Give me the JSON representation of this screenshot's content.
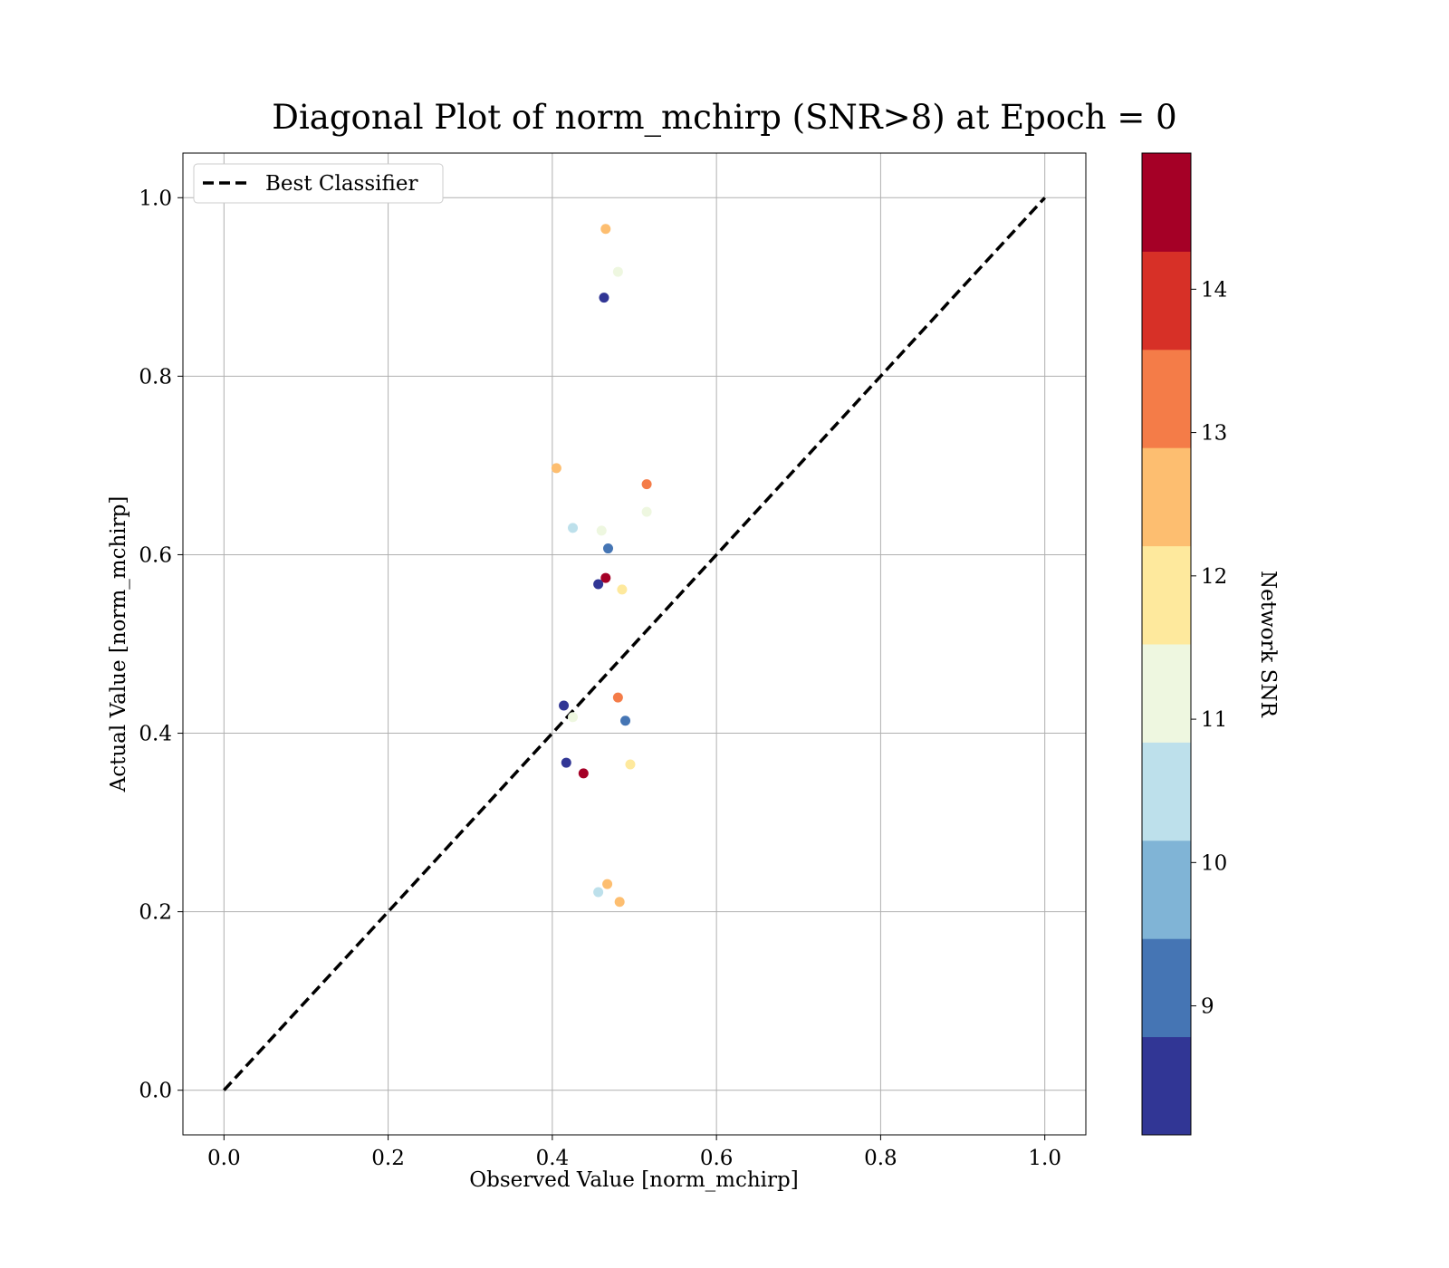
{
  "chart_data": {
    "type": "scatter",
    "title": "Diagonal Plot of norm_mchirp (SNR>8) at Epoch = 0",
    "xlabel": "Observed Value [norm_mchirp]",
    "ylabel": "Actual Value [norm_mchirp]",
    "xlim": [
      -0.05,
      1.05
    ],
    "ylim": [
      -0.05,
      1.05
    ],
    "xticks": [
      "0.0",
      "0.2",
      "0.4",
      "0.6",
      "0.8",
      "1.0"
    ],
    "yticks": [
      "0.0",
      "0.2",
      "0.4",
      "0.6",
      "0.8",
      "1.0"
    ],
    "grid": true,
    "legend": {
      "placement": "top-left",
      "entries": [
        "Best Classifier"
      ]
    },
    "reference_line": {
      "name": "Best Classifier",
      "style": "dashed",
      "color": "#000000",
      "x": [
        0,
        1
      ],
      "y": [
        0,
        1
      ]
    },
    "colorbar": {
      "label": "Network SNR",
      "range": [
        8.1,
        14.95
      ],
      "ticks": [
        "9",
        "10",
        "11",
        "12",
        "13",
        "14"
      ],
      "colors": [
        "#313695",
        "#4575b4",
        "#80b4d6",
        "#bde0eb",
        "#eef7e0",
        "#fee99d",
        "#fdbe70",
        "#f47c48",
        "#d73027",
        "#a50026"
      ]
    },
    "points": [
      {
        "x": 0.465,
        "y": 0.965,
        "snr": 12.5
      },
      {
        "x": 0.48,
        "y": 0.917,
        "snr": 11.3
      },
      {
        "x": 0.463,
        "y": 0.888,
        "snr": 8.3
      },
      {
        "x": 0.405,
        "y": 0.697,
        "snr": 12.5
      },
      {
        "x": 0.515,
        "y": 0.679,
        "snr": 13.2
      },
      {
        "x": 0.515,
        "y": 0.648,
        "snr": 11.3
      },
      {
        "x": 0.425,
        "y": 0.63,
        "snr": 10.7
      },
      {
        "x": 0.46,
        "y": 0.627,
        "snr": 11.3
      },
      {
        "x": 0.468,
        "y": 0.607,
        "snr": 9.2
      },
      {
        "x": 0.465,
        "y": 0.574,
        "snr": 14.7
      },
      {
        "x": 0.456,
        "y": 0.567,
        "snr": 8.3
      },
      {
        "x": 0.485,
        "y": 0.561,
        "snr": 11.8
      },
      {
        "x": 0.48,
        "y": 0.44,
        "snr": 13.2
      },
      {
        "x": 0.414,
        "y": 0.431,
        "snr": 8.3
      },
      {
        "x": 0.425,
        "y": 0.418,
        "snr": 11.3
      },
      {
        "x": 0.489,
        "y": 0.414,
        "snr": 9.2
      },
      {
        "x": 0.417,
        "y": 0.367,
        "snr": 8.3
      },
      {
        "x": 0.495,
        "y": 0.365,
        "snr": 11.8
      },
      {
        "x": 0.438,
        "y": 0.355,
        "snr": 14.7
      },
      {
        "x": 0.467,
        "y": 0.231,
        "snr": 12.5
      },
      {
        "x": 0.456,
        "y": 0.222,
        "snr": 10.7
      },
      {
        "x": 0.482,
        "y": 0.211,
        "snr": 12.5
      }
    ]
  }
}
